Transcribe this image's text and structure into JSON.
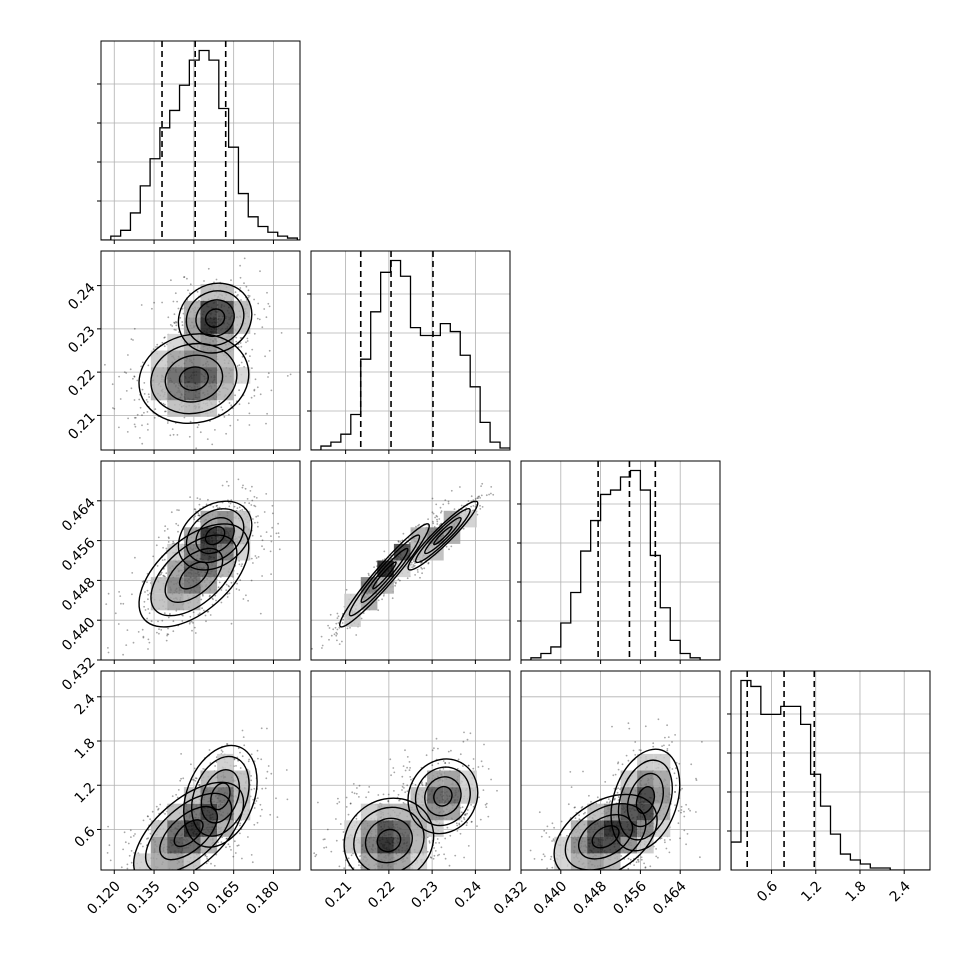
{
  "chart_data": {
    "type": "corner",
    "parameters": 4,
    "axes": [
      {
        "range": [
          0.115,
          0.19
        ],
        "ticks": [
          "0.120",
          "0.135",
          "0.150",
          "0.165",
          "0.180"
        ],
        "tick_values": [
          0.12,
          0.135,
          0.15,
          0.165,
          0.18
        ]
      },
      {
        "range": [
          0.202,
          0.248
        ],
        "ticks": [
          "0.21",
          "0.22",
          "0.23",
          "0.24"
        ],
        "tick_values": [
          0.21,
          0.22,
          0.23,
          0.24
        ]
      },
      {
        "range": [
          0.432,
          0.472
        ],
        "ticks": [
          "0.432",
          "0.440",
          "0.448",
          "0.456",
          "0.464"
        ],
        "tick_values": [
          0.432,
          0.44,
          0.448,
          0.456,
          0.464
        ]
      },
      {
        "range": [
          0.05,
          2.75
        ],
        "ticks": [
          "0.6",
          "1.2",
          "1.8",
          "2.4"
        ],
        "tick_values": [
          0.6,
          1.2,
          1.8,
          2.4
        ]
      }
    ],
    "grid": true,
    "histograms": [
      {
        "param_index": 0,
        "quantiles": [
          0.138,
          0.1505,
          0.162
        ],
        "bin_edges_start": 0.115,
        "bin_width": 0.0037,
        "counts": [
          0,
          2,
          5,
          14,
          28,
          42,
          58,
          67,
          80,
          93,
          98,
          93,
          68,
          48,
          24,
          12,
          7,
          4,
          2,
          1,
          0
        ]
      },
      {
        "param_index": 1,
        "quantiles": [
          0.2135,
          0.2205,
          0.2302
        ],
        "bin_edges_start": 0.202,
        "bin_width": 0.0023,
        "counts": [
          0,
          2,
          4,
          8,
          18,
          46,
          70,
          90,
          96,
          88,
          62,
          58,
          58,
          64,
          60,
          48,
          32,
          14,
          4,
          1
        ]
      },
      {
        "param_index": 2,
        "quantiles": [
          0.4475,
          0.4538,
          0.459
        ],
        "bin_edges_start": 0.432,
        "bin_width": 0.002,
        "counts": [
          0,
          1,
          3,
          6,
          17,
          31,
          50,
          64,
          76,
          78,
          84,
          87,
          78,
          48,
          24,
          9,
          3,
          1,
          0,
          0
        ]
      },
      {
        "param_index": 3,
        "quantiles": [
          0.27,
          0.77,
          1.18
        ],
        "bin_edges_start": 0.05,
        "bin_width": 0.135,
        "counts": [
          14,
          95,
          92,
          78,
          78,
          82,
          82,
          73,
          48,
          32,
          18,
          8,
          5,
          3,
          1,
          1,
          0,
          0,
          0,
          0
        ]
      }
    ],
    "scatter_panels": [
      {
        "row": 1,
        "col": 0,
        "modes": [
          {
            "x": 0.15,
            "y": 0.2185,
            "sx": 0.009,
            "sy": 0.0045,
            "rho": 0.1,
            "w": 0.6
          },
          {
            "x": 0.158,
            "y": 0.2325,
            "sx": 0.006,
            "sy": 0.0035,
            "rho": 0.1,
            "w": 0.4
          }
        ]
      },
      {
        "row": 2,
        "col": 0,
        "modes": [
          {
            "x": 0.15,
            "y": 0.449,
            "sx": 0.009,
            "sy": 0.0045,
            "rho": 0.55,
            "w": 0.6
          },
          {
            "x": 0.158,
            "y": 0.457,
            "sx": 0.006,
            "sy": 0.003,
            "rho": 0.3,
            "w": 0.4
          }
        ]
      },
      {
        "row": 2,
        "col": 1,
        "modes": [
          {
            "x": 0.219,
            "y": 0.449,
            "sx": 0.0045,
            "sy": 0.0045,
            "rho": 0.96,
            "w": 0.6
          },
          {
            "x": 0.2325,
            "y": 0.457,
            "sx": 0.0035,
            "sy": 0.003,
            "rho": 0.94,
            "w": 0.4
          }
        ]
      },
      {
        "row": 3,
        "col": 0,
        "modes": [
          {
            "x": 0.148,
            "y": 0.55,
            "sx": 0.009,
            "sy": 0.3,
            "rho": 0.6,
            "w": 0.7
          },
          {
            "x": 0.16,
            "y": 1.05,
            "sx": 0.006,
            "sy": 0.3,
            "rho": 0.3,
            "w": 0.3
          }
        ]
      },
      {
        "row": 3,
        "col": 1,
        "modes": [
          {
            "x": 0.22,
            "y": 0.45,
            "sx": 0.0045,
            "sy": 0.25,
            "rho": 0.1,
            "w": 0.65
          },
          {
            "x": 0.2325,
            "y": 1.05,
            "sx": 0.0035,
            "sy": 0.22,
            "rho": 0.1,
            "w": 0.35
          }
        ]
      },
      {
        "row": 3,
        "col": 2,
        "modes": [
          {
            "x": 0.449,
            "y": 0.5,
            "sx": 0.0045,
            "sy": 0.25,
            "rho": 0.4,
            "w": 0.6
          },
          {
            "x": 0.457,
            "y": 1.0,
            "sx": 0.003,
            "sy": 0.3,
            "rho": 0.3,
            "w": 0.4
          }
        ]
      }
    ]
  }
}
